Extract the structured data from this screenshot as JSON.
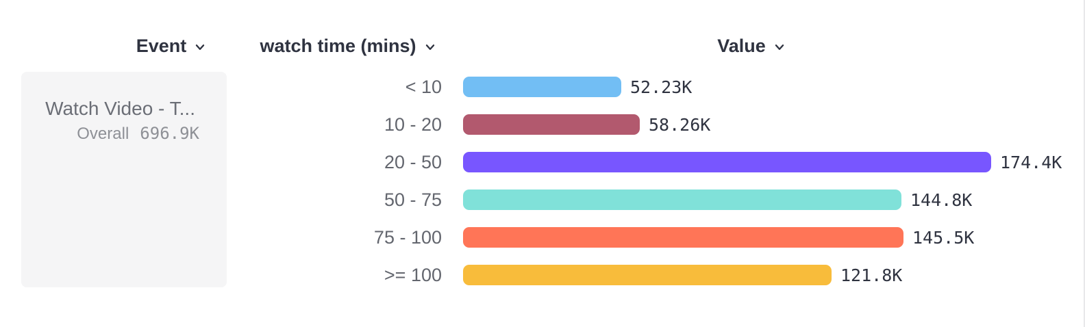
{
  "header": {
    "columns": [
      {
        "label": "Event"
      },
      {
        "label": "watch time (mins)"
      },
      {
        "label": "Value"
      }
    ]
  },
  "event_card": {
    "title": "Watch Video - T...",
    "overall_label": "Overall",
    "overall_value": "696.9K"
  },
  "chart_data": {
    "type": "bar",
    "orientation": "horizontal",
    "title": "",
    "xlabel": "Value",
    "ylabel": "watch time (mins)",
    "categories": [
      "< 10",
      "10 - 20",
      "20 - 50",
      "50 - 75",
      "75 - 100",
      ">= 100"
    ],
    "values": [
      52230,
      58260,
      174400,
      144800,
      145500,
      121800
    ],
    "value_labels": [
      "52.23K",
      "58.26K",
      "174.4K",
      "144.8K",
      "145.5K",
      "121.8K"
    ],
    "colors": [
      "#72BEF4",
      "#B2596E",
      "#7856FF",
      "#80E1D9",
      "#FF7557",
      "#F8BC3B"
    ],
    "max_value": 174400,
    "grid": false,
    "legend": "none"
  }
}
